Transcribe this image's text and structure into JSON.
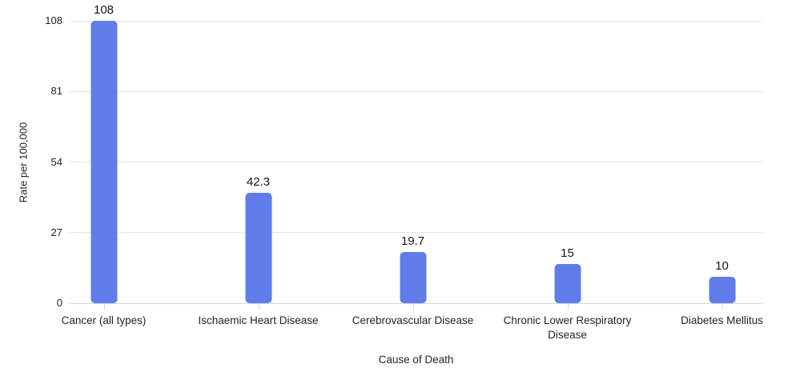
{
  "chart_data": {
    "type": "bar",
    "title": "",
    "categories": [
      "Cancer (all types)",
      "Ischaemic Heart Disease",
      "Cerebrovascular Disease",
      "Chronic Lower Respiratory Disease",
      "Diabetes Mellitus"
    ],
    "values": [
      108,
      42.3,
      19.7,
      15,
      10
    ],
    "data_labels": [
      "108",
      "42.3",
      "19.7",
      "15",
      "10"
    ],
    "xlabel": "Cause of Death",
    "ylabel": "Rate per 100,000",
    "ylim": [
      0,
      108
    ],
    "yticks": [
      0,
      27,
      54,
      81,
      108
    ],
    "legend": "none",
    "grid": "horizontal",
    "colors": {
      "bar": "#5f7ce9",
      "gridline": "#e4e4e4",
      "axis_line": "#d6d6d6",
      "text": "#252423",
      "value_label": "#141414"
    }
  }
}
